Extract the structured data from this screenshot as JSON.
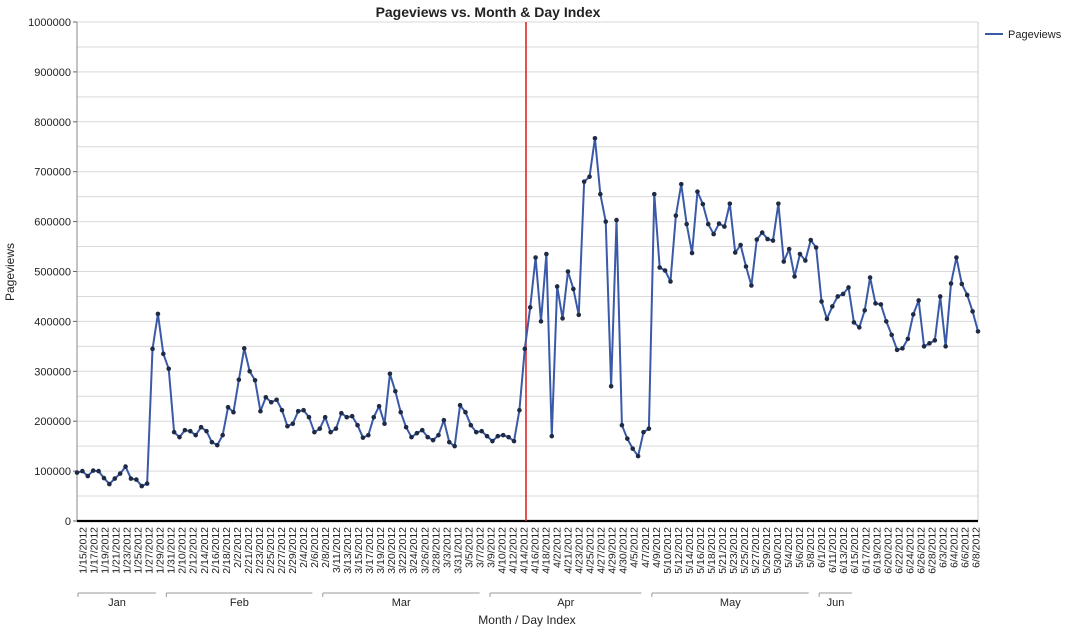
{
  "colors": {
    "series": "#3a5aa8",
    "marker": "#1f2a44",
    "reference_line": "#e0262b",
    "grid": "#d9d9d9",
    "axis": "#000000"
  },
  "chart_data": {
    "type": "line",
    "title": "Pageviews vs. Month & Day Index",
    "xlabel": "Month / Day Index",
    "ylabel": "Pageviews",
    "ylim": [
      0,
      1000000
    ],
    "yticks": [
      0,
      100000,
      200000,
      300000,
      400000,
      500000,
      600000,
      700000,
      800000,
      900000,
      1000000
    ],
    "ytick_labels": [
      "0",
      "100000",
      "200000",
      "300000",
      "400000",
      "500000",
      "600000",
      "700000",
      "800000",
      "900000",
      "1000000"
    ],
    "grid": true,
    "legend_position": "top-right",
    "reference_line_date": "4/14/2012",
    "month_groups": [
      {
        "label": "Jan",
        "count": 16
      },
      {
        "label": "Feb",
        "count": 29
      },
      {
        "label": "Mar",
        "count": 31
      },
      {
        "label": "Apr",
        "count": 30
      },
      {
        "label": "May",
        "count": 31
      },
      {
        "label": "Jun",
        "count": 8
      }
    ],
    "x_tick_labels": [
      "1/15/2012",
      "1/17/2012",
      "1/19/2012",
      "1/21/2012",
      "1/23/2012",
      "1/25/2012",
      "1/27/2012",
      "1/29/2012",
      "1/31/2012",
      "2/10/2012",
      "2/12/2012",
      "2/14/2012",
      "2/16/2012",
      "2/18/2012",
      "2/2/2012",
      "2/21/2012",
      "2/23/2012",
      "2/25/2012",
      "2/27/2012",
      "2/29/2012",
      "2/4/2012",
      "2/6/2012",
      "2/8/2012",
      "3/11/2012",
      "3/13/2012",
      "3/15/2012",
      "3/17/2012",
      "3/19/2012",
      "3/20/2012",
      "3/22/2012",
      "3/24/2012",
      "3/26/2012",
      "3/28/2012",
      "3/3/2012",
      "3/31/2012",
      "3/5/2012",
      "3/7/2012",
      "3/9/2012",
      "4/10/2012",
      "4/12/2012",
      "4/14/2012",
      "4/16/2012",
      "4/18/2012",
      "4/2/2012",
      "4/21/2012",
      "4/23/2012",
      "4/25/2012",
      "4/27/2012",
      "4/29/2012",
      "4/30/2012",
      "4/5/2012",
      "4/7/2012",
      "4/9/2012",
      "5/10/2012",
      "5/12/2012",
      "5/14/2012",
      "5/16/2012",
      "5/18/2012",
      "5/21/2012",
      "5/23/2012",
      "5/25/2012",
      "5/27/2012",
      "5/29/2012",
      "5/30/2012",
      "5/4/2012",
      "5/6/2012",
      "5/8/2012",
      "6/1/2012",
      "6/11/2012",
      "6/13/2012",
      "6/15/2012",
      "6/17/2012",
      "6/19/2012",
      "6/20/2012",
      "6/22/2012",
      "6/24/2012",
      "6/26/2012",
      "6/28/2012",
      "6/3/2012",
      "6/4/2012",
      "6/6/2012",
      "6/8/2012"
    ],
    "series": [
      {
        "name": "Pageviews",
        "values": [
          97000,
          100000,
          90000,
          101000,
          100000,
          86000,
          74000,
          85000,
          95000,
          109000,
          85000,
          83000,
          70000,
          75000,
          345000,
          415000,
          335000,
          305000,
          178000,
          168000,
          182000,
          180000,
          172000,
          188000,
          180000,
          158000,
          152000,
          172000,
          228000,
          218000,
          283000,
          346000,
          300000,
          282000,
          220000,
          248000,
          238000,
          243000,
          222000,
          190000,
          195000,
          220000,
          222000,
          208000,
          178000,
          185000,
          208000,
          178000,
          185000,
          216000,
          208000,
          210000,
          192000,
          167000,
          172000,
          208000,
          230000,
          195000,
          295000,
          260000,
          218000,
          188000,
          168000,
          176000,
          182000,
          168000,
          162000,
          172000,
          202000,
          158000,
          150000,
          232000,
          218000,
          192000,
          178000,
          180000,
          170000,
          160000,
          170000,
          172000,
          168000,
          160000,
          222000,
          345000,
          428000,
          528000,
          400000,
          535000,
          170000,
          470000,
          406000,
          500000,
          465000,
          413000,
          680000,
          690000,
          767000,
          655000,
          600000,
          270000,
          603000,
          192000,
          165000,
          145000,
          130000,
          178000,
          185000,
          655000,
          508000,
          502000,
          480000,
          612000,
          675000,
          595000,
          537000,
          660000,
          635000,
          595000,
          575000,
          596000,
          590000,
          636000,
          538000,
          553000,
          510000,
          472000,
          564000,
          578000,
          565000,
          562000,
          636000,
          520000,
          545000,
          490000,
          535000,
          522000,
          563000,
          548000,
          440000,
          405000,
          430000,
          450000,
          455000,
          468000,
          398000,
          388000,
          422000,
          488000,
          436000,
          434000,
          400000,
          373000,
          343000,
          346000,
          365000,
          414000,
          442000,
          350000,
          356000,
          362000,
          450000,
          350000,
          476000,
          528000,
          475000,
          453000,
          420000,
          380000
        ]
      }
    ]
  }
}
